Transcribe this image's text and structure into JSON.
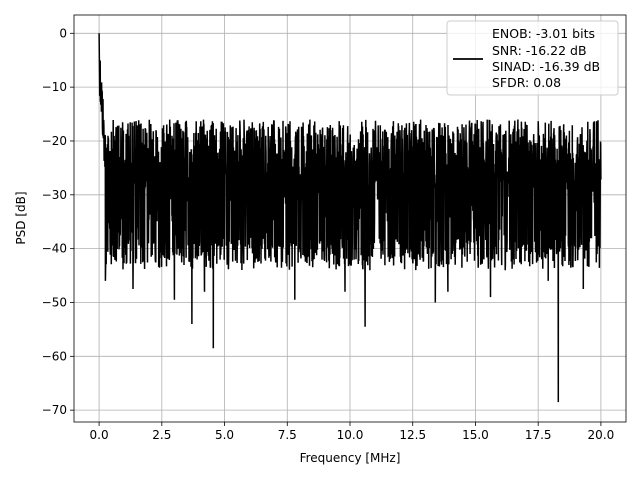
{
  "chart_data": {
    "type": "line",
    "title": "",
    "xlabel": "Frequency [MHz]",
    "ylabel": "PSD [dB]",
    "xlim": [
      -1.0,
      21.0
    ],
    "ylim": [
      -72.2,
      3.4
    ],
    "xticks": [
      0.0,
      2.5,
      5.0,
      7.5,
      10.0,
      12.5,
      15.0,
      17.5,
      20.0
    ],
    "xtick_labels": [
      "0.0",
      "2.5",
      "5.0",
      "7.5",
      "10.0",
      "12.5",
      "15.0",
      "17.5",
      "20.0"
    ],
    "yticks": [
      0,
      -10,
      -20,
      -30,
      -40,
      -50,
      -60,
      -70
    ],
    "ytick_labels": [
      "0",
      "−10",
      "−20",
      "−30",
      "−40",
      "−50",
      "−60",
      "−70"
    ],
    "grid": true,
    "legend_position": "top-right",
    "legend": [
      "ENOB: -3.01 bits",
      "SNR: -16.22 dB",
      "SINAD: -16.39 dB",
      "SFDR: 0.08"
    ],
    "series": [
      {
        "color": "#000000",
        "x_range": [
          0.0,
          20.0
        ],
        "peak": {
          "x": 0.0,
          "y": 0.0
        },
        "noise_floor_upper_dB": -13,
        "noise_floor_lower_dB": -42,
        "notable_dips": [
          {
            "x": 0.25,
            "y": -46
          },
          {
            "x": 1.35,
            "y": -47.5
          },
          {
            "x": 3.0,
            "y": -49.5
          },
          {
            "x": 3.7,
            "y": -54
          },
          {
            "x": 4.2,
            "y": -48
          },
          {
            "x": 4.55,
            "y": -58.5
          },
          {
            "x": 7.8,
            "y": -49.5
          },
          {
            "x": 9.8,
            "y": -48
          },
          {
            "x": 10.6,
            "y": -54.5
          },
          {
            "x": 13.4,
            "y": -50
          },
          {
            "x": 13.9,
            "y": -48
          },
          {
            "x": 15.6,
            "y": -49
          },
          {
            "x": 17.9,
            "y": -46
          },
          {
            "x": 18.3,
            "y": -68.5
          },
          {
            "x": 19.3,
            "y": -47.5
          }
        ]
      }
    ]
  }
}
